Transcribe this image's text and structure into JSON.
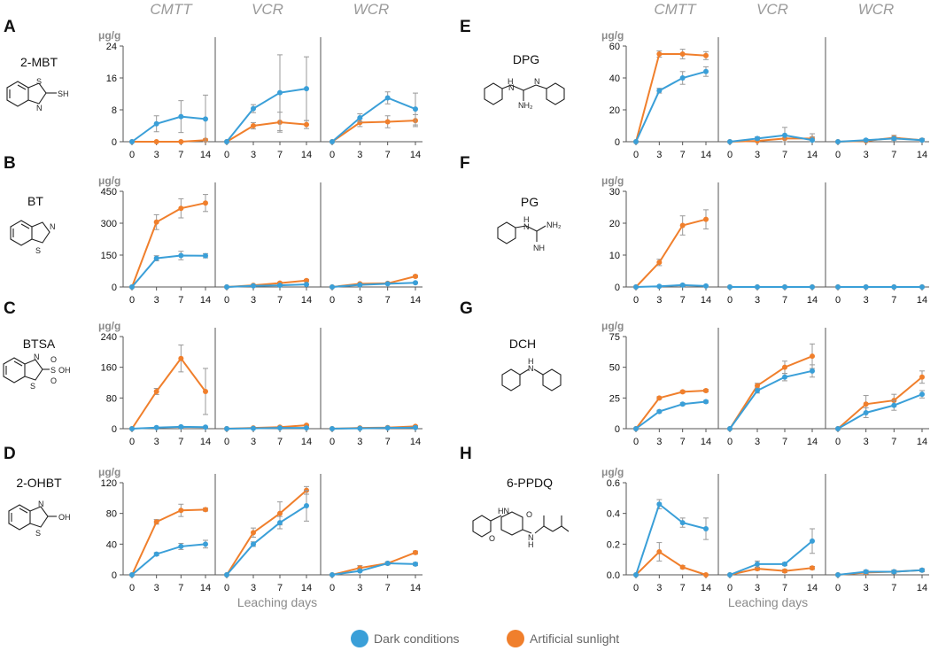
{
  "colors": {
    "dark": "#3a9fd8",
    "sun": "#f07f2c"
  },
  "figure": {
    "column_titles": [
      "CMTT",
      "VCR",
      "WCR"
    ],
    "xlabel": "Leaching days",
    "unit": "μg/g",
    "legend": {
      "dark": "Dark conditions",
      "sun": "Artificial sunlight"
    }
  },
  "chart_data": [
    {
      "type": "line",
      "panel": "A",
      "compound": "2-MBT",
      "categories": [
        0,
        3,
        7,
        14
      ],
      "ylim": [
        0,
        24
      ],
      "yticks": [
        0,
        8,
        16,
        24
      ],
      "groups": {
        "CMTT": {
          "dark": [
            0,
            4.5,
            6.3,
            5.7
          ],
          "dark_err": [
            0,
            2,
            4,
            6
          ],
          "sun": [
            0,
            0,
            0,
            0.4
          ],
          "sun_err": [
            0,
            0,
            0,
            0.3
          ]
        },
        "VCR": {
          "dark": [
            0,
            8.3,
            12.3,
            13.3
          ],
          "dark_err": [
            0,
            1,
            9.5,
            8
          ],
          "sun": [
            0,
            4,
            4.9,
            4.3
          ],
          "sun_err": [
            0,
            0.8,
            2.5,
            1
          ]
        },
        "WCR": {
          "dark": [
            0,
            6,
            11,
            8.2
          ],
          "dark_err": [
            0,
            1,
            1.5,
            4
          ],
          "sun": [
            0,
            4.8,
            5,
            5.3
          ],
          "sun_err": [
            0,
            1,
            1.5,
            1.5
          ]
        }
      }
    },
    {
      "type": "line",
      "panel": "B",
      "compound": "BT",
      "categories": [
        0,
        3,
        7,
        14
      ],
      "ylim": [
        0,
        450
      ],
      "yticks": [
        0,
        150,
        300,
        450
      ],
      "groups": {
        "CMTT": {
          "dark": [
            0,
            135,
            148,
            147
          ],
          "dark_err": [
            0,
            12,
            20,
            10
          ],
          "sun": [
            0,
            305,
            370,
            395
          ],
          "sun_err": [
            0,
            35,
            45,
            40
          ]
        },
        "VCR": {
          "dark": [
            0,
            5,
            8,
            12
          ],
          "dark_err": [
            0,
            2,
            2,
            2
          ],
          "sun": [
            0,
            8,
            18,
            30
          ],
          "sun_err": [
            0,
            3,
            5,
            5
          ]
        },
        "WCR": {
          "dark": [
            0,
            10,
            15,
            20
          ],
          "dark_err": [
            0,
            2,
            2,
            3
          ],
          "sun": [
            0,
            15,
            17,
            50
          ],
          "sun_err": [
            0,
            3,
            3,
            5
          ]
        }
      }
    },
    {
      "type": "line",
      "panel": "C",
      "compound": "BTSA",
      "categories": [
        0,
        3,
        7,
        14
      ],
      "ylim": [
        0,
        240
      ],
      "yticks": [
        0,
        80,
        160,
        240
      ],
      "groups": {
        "CMTT": {
          "dark": [
            0,
            3,
            5,
            4
          ],
          "dark_err": [
            0,
            1,
            2,
            1
          ],
          "sun": [
            0,
            97,
            183,
            97
          ],
          "sun_err": [
            0,
            8,
            35,
            60
          ]
        },
        "VCR": {
          "dark": [
            0,
            1,
            2,
            2
          ],
          "dark_err": [
            0,
            0.5,
            1,
            1
          ],
          "sun": [
            0,
            2,
            4,
            9
          ],
          "sun_err": [
            0,
            1,
            1,
            2
          ]
        },
        "WCR": {
          "dark": [
            0,
            1,
            2,
            3
          ],
          "dark_err": [
            0,
            0.5,
            1,
            1
          ],
          "sun": [
            0,
            2,
            3,
            6
          ],
          "sun_err": [
            0,
            1,
            1,
            2
          ]
        }
      }
    },
    {
      "type": "line",
      "panel": "D",
      "compound": "2-OHBT",
      "categories": [
        0,
        3,
        7,
        14
      ],
      "ylim": [
        0,
        120
      ],
      "yticks": [
        0,
        40,
        80,
        120
      ],
      "groups": {
        "CMTT": {
          "dark": [
            0,
            27,
            37,
            40
          ],
          "dark_err": [
            0,
            2,
            4,
            5
          ],
          "sun": [
            0,
            69,
            84,
            85
          ],
          "sun_err": [
            0,
            3,
            8,
            2
          ]
        },
        "VCR": {
          "dark": [
            0,
            40,
            68,
            90
          ],
          "dark_err": [
            0,
            3,
            8,
            20
          ],
          "sun": [
            0,
            55,
            80,
            110
          ],
          "sun_err": [
            0,
            6,
            15,
            5
          ]
        },
        "WCR": {
          "dark": [
            0,
            5,
            15,
            14
          ],
          "dark_err": [
            0,
            1,
            1,
            2
          ],
          "sun": [
            0,
            9,
            15,
            29
          ],
          "sun_err": [
            0,
            3,
            2,
            2
          ]
        }
      }
    },
    {
      "type": "line",
      "panel": "E",
      "compound": "DPG",
      "categories": [
        0,
        3,
        7,
        14
      ],
      "ylim": [
        0,
        60
      ],
      "yticks": [
        0,
        20,
        40,
        60
      ],
      "groups": {
        "CMTT": {
          "dark": [
            0,
            32,
            40,
            44
          ],
          "dark_err": [
            0,
            1.5,
            4,
            3
          ],
          "sun": [
            0,
            55,
            55,
            54
          ],
          "sun_err": [
            0,
            2,
            3,
            2.5
          ]
        },
        "VCR": {
          "dark": [
            0,
            2,
            4,
            1
          ],
          "dark_err": [
            0,
            1,
            5,
            2
          ],
          "sun": [
            0,
            0.5,
            2,
            2
          ],
          "sun_err": [
            0,
            1,
            2,
            3
          ]
        },
        "WCR": {
          "dark": [
            0,
            1,
            2,
            1
          ],
          "dark_err": [
            0,
            0.5,
            1,
            1
          ],
          "sun": [
            0,
            0.5,
            2.5,
            1
          ],
          "sun_err": [
            0,
            1,
            1.5,
            1
          ]
        }
      }
    },
    {
      "type": "line",
      "panel": "F",
      "compound": "PG",
      "categories": [
        0,
        3,
        7,
        14
      ],
      "ylim": [
        0,
        30
      ],
      "yticks": [
        0,
        10,
        20,
        30
      ],
      "groups": {
        "CMTT": {
          "dark": [
            0,
            0.2,
            0.6,
            0.3
          ],
          "dark_err": [
            0,
            0.1,
            0.3,
            0.2
          ],
          "sun": [
            0,
            7.7,
            19.3,
            21.2
          ],
          "sun_err": [
            0,
            1,
            3,
            3
          ]
        },
        "VCR": {
          "dark": [
            0,
            0,
            0,
            0
          ],
          "dark_err": [
            0,
            0,
            0,
            0
          ],
          "sun": [
            0,
            0,
            0,
            0
          ],
          "sun_err": [
            0,
            0,
            0,
            0
          ]
        },
        "WCR": {
          "dark": [
            0,
            0,
            0,
            0
          ],
          "dark_err": [
            0,
            0,
            0,
            0
          ],
          "sun": [
            0,
            0,
            0,
            0
          ],
          "sun_err": [
            0,
            0,
            0,
            0
          ]
        }
      }
    },
    {
      "type": "line",
      "panel": "G",
      "compound": "DCH",
      "categories": [
        0,
        3,
        7,
        14
      ],
      "ylim": [
        0,
        75
      ],
      "yticks": [
        0,
        25,
        50,
        75
      ],
      "groups": {
        "CMTT": {
          "dark": [
            0,
            14,
            20,
            22
          ],
          "dark_err": [
            0,
            1,
            1,
            1
          ],
          "sun": [
            0,
            25,
            30,
            31
          ],
          "sun_err": [
            0,
            1,
            1,
            1
          ]
        },
        "VCR": {
          "dark": [
            0,
            31,
            42,
            47
          ],
          "dark_err": [
            0,
            2,
            3,
            5
          ],
          "sun": [
            0,
            35,
            50,
            59
          ],
          "sun_err": [
            0,
            2,
            5,
            10
          ]
        },
        "WCR": {
          "dark": [
            0,
            13,
            19,
            28
          ],
          "dark_err": [
            0,
            4,
            4,
            3
          ],
          "sun": [
            0,
            20,
            23,
            42
          ],
          "sun_err": [
            0,
            7,
            5,
            5
          ]
        }
      }
    },
    {
      "type": "line",
      "panel": "H",
      "compound": "6-PPDQ",
      "categories": [
        0,
        3,
        7,
        14
      ],
      "ylim": [
        0,
        0.6
      ],
      "yticks": [
        0,
        0.2,
        0.4,
        0.6
      ],
      "ytick_labels": [
        "0.0",
        "0.2",
        "0.4",
        "0.6"
      ],
      "groups": {
        "CMTT": {
          "dark": [
            0,
            0.46,
            0.34,
            0.3
          ],
          "dark_err": [
            0,
            0.03,
            0.03,
            0.07
          ],
          "sun": [
            0,
            0.15,
            0.05,
            0
          ],
          "sun_err": [
            0,
            0.06,
            0.01,
            0
          ]
        },
        "VCR": {
          "dark": [
            0,
            0.07,
            0.07,
            0.22
          ],
          "dark_err": [
            0,
            0.02,
            0.01,
            0.08
          ],
          "sun": [
            0,
            0.04,
            0.025,
            0.045
          ],
          "sun_err": [
            0,
            0.01,
            0.01,
            0.01
          ]
        },
        "WCR": {
          "dark": [
            0,
            0.02,
            0.02,
            0.03
          ],
          "dark_err": [
            0,
            0.01,
            0.01,
            0.01
          ],
          "sun": [
            0,
            0.015,
            0.02,
            0.03
          ],
          "sun_err": [
            0,
            0.01,
            0.01,
            0.01
          ]
        }
      }
    }
  ]
}
